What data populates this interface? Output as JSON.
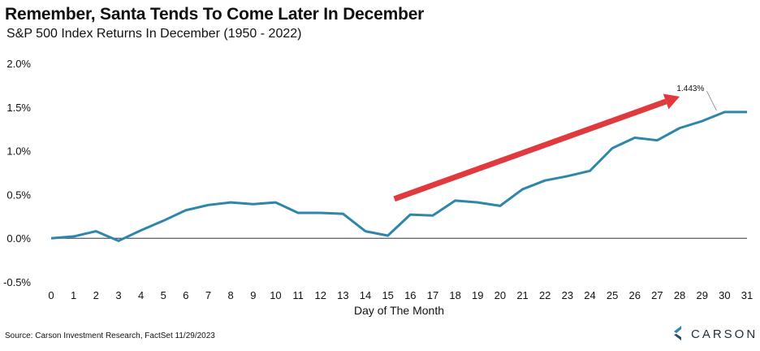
{
  "title": "Remember, Santa Tends To Come Later In December",
  "subtitle": "S&P 500 Index Returns In December (1950 - 2022)",
  "source": "Source: Carson Investment Research, FactSet 11/29/2023",
  "logo": {
    "text": "CARSON",
    "icon": "carson-chevron-logo"
  },
  "colors": {
    "line": "#2e86ab",
    "arrow": "#e03a3e",
    "axis": "#333333"
  },
  "chart_data": {
    "type": "line",
    "title": "Remember, Santa Tends To Come Later In December",
    "subtitle": "S&P 500 Index Returns In December (1950 - 2022)",
    "xlabel": "Day of The Month",
    "ylabel": "",
    "x": [
      0,
      1,
      2,
      3,
      4,
      5,
      6,
      7,
      8,
      9,
      10,
      11,
      12,
      13,
      14,
      15,
      16,
      17,
      18,
      19,
      20,
      21,
      22,
      23,
      24,
      25,
      26,
      27,
      28,
      29,
      30,
      31
    ],
    "y_tick_labels": [
      "-0.5%",
      "0.0%",
      "0.5%",
      "1.0%",
      "1.5%",
      "2.0%"
    ],
    "y_ticks": [
      -0.5,
      0.0,
      0.5,
      1.0,
      1.5,
      2.0
    ],
    "ylim": [
      -0.5,
      2.0
    ],
    "xlim": [
      0,
      31
    ],
    "grid": false,
    "series": [
      {
        "values": [
          0.0,
          0.02,
          0.08,
          -0.03,
          0.09,
          0.2,
          0.32,
          0.38,
          0.41,
          0.39,
          0.41,
          0.29,
          0.29,
          0.28,
          0.08,
          0.03,
          0.27,
          0.26,
          0.43,
          0.41,
          0.37,
          0.56,
          0.66,
          0.71,
          0.77,
          1.03,
          1.15,
          1.12,
          1.26,
          1.34,
          1.443,
          1.443
        ]
      }
    ],
    "annotations": [
      {
        "text": "1.443%",
        "x": 30,
        "y": 1.443
      }
    ],
    "trend_arrow": {
      "from": [
        15,
        0.45
      ],
      "to": [
        28,
        1.62
      ]
    }
  }
}
